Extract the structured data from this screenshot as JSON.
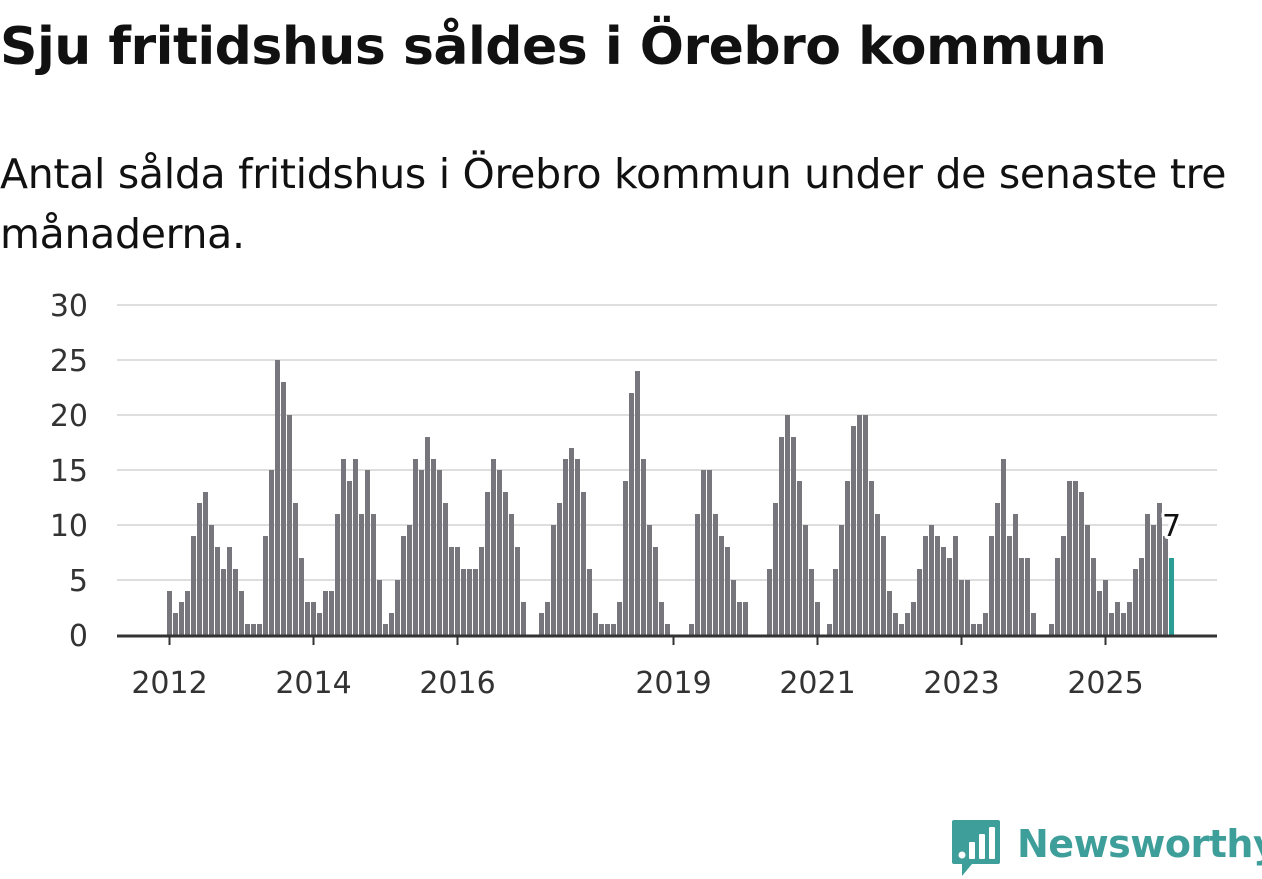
{
  "title": "Sju fritidshus såldes i Örebro kommun",
  "subtitle": "Antal sålda fritidshus i Örebro kommun under de senaste tre månaderna.",
  "brand": {
    "name": "Newsworthy",
    "icon": "newsworthy-logo-icon",
    "color": "#3d9e9a"
  },
  "chart_data": {
    "type": "bar",
    "x_ticks": [
      "2012",
      "2014",
      "2016",
      "2019",
      "2021",
      "2023",
      "2025"
    ],
    "y_ticks": [
      "0",
      "5",
      "10",
      "15",
      "20",
      "25",
      "30"
    ],
    "ylim": [
      0,
      30
    ],
    "grid": true,
    "colors": {
      "bars": "#76767c",
      "highlight": "#2a9d94",
      "grid": "#dedede",
      "axis": "#333333"
    },
    "series": [
      {
        "values": [
          4,
          2,
          3,
          4,
          9,
          12,
          13,
          10,
          8,
          6,
          8,
          6,
          4,
          1,
          1,
          1,
          9,
          15,
          25,
          23,
          20,
          12,
          7,
          3,
          3,
          2,
          4,
          4,
          11,
          16,
          14,
          16,
          11,
          15,
          11,
          5,
          1,
          2,
          5,
          9,
          10,
          16,
          15,
          18,
          16,
          15,
          12,
          8,
          8,
          6,
          6,
          6,
          8,
          13,
          16,
          15,
          13,
          11,
          8,
          3,
          0,
          0,
          2,
          3,
          10,
          12,
          16,
          17,
          16,
          13,
          6,
          2,
          1,
          1,
          1,
          3,
          14,
          22,
          24,
          16,
          10,
          8,
          3,
          1,
          0,
          0,
          0,
          1,
          11,
          15,
          15,
          11,
          9,
          8,
          5,
          3,
          3,
          0,
          0,
          0,
          6,
          12,
          18,
          20,
          18,
          14,
          10,
          6,
          3,
          0,
          1,
          6,
          10,
          14,
          19,
          20,
          20,
          14,
          11,
          9,
          4,
          2,
          1,
          2,
          3,
          6,
          9,
          10,
          9,
          8,
          7,
          9,
          5,
          5,
          1,
          1,
          2,
          9,
          12,
          16,
          9,
          11,
          7,
          7,
          2,
          0,
          0,
          1,
          7,
          9,
          14,
          14,
          13,
          10,
          7,
          4,
          5,
          2,
          3,
          2,
          3,
          6,
          7,
          11,
          10,
          12,
          9,
          7
        ]
      }
    ],
    "last_value_label": "7"
  }
}
